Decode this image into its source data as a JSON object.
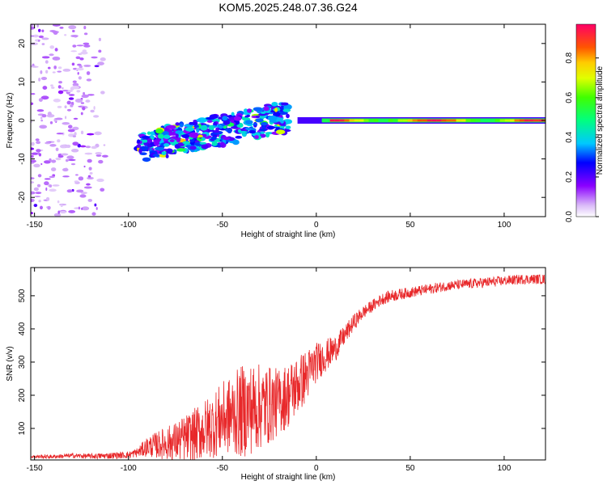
{
  "title": "KOM5.2025.248.07.36.G24",
  "chart_data": [
    {
      "type": "heatmap",
      "name": "spectrogram",
      "xlabel": "Height of straight line (km)",
      "ylabel": "Frequency (Hz)",
      "xlim": [
        -152,
        122
      ],
      "ylim": [
        -25,
        25
      ],
      "xticks": [
        "-150",
        "-100",
        "-50",
        "0",
        "50",
        "100"
      ],
      "xtick_values": [
        -150,
        -100,
        -50,
        0,
        50,
        100
      ],
      "yticks": [
        "20",
        "10",
        "0",
        "-10",
        "-20"
      ],
      "ytick_values": [
        20,
        10,
        0,
        -10,
        -20
      ],
      "colorbar": {
        "label": "Normalized spectral amplitude",
        "range": [
          0,
          0.97
        ],
        "ticks": [
          "0.0",
          "0.2",
          "0.4",
          "0.6",
          "0.8"
        ],
        "tick_values": [
          0.0,
          0.2,
          0.4,
          0.6,
          0.8
        ]
      },
      "features": {
        "carrier_line": {
          "freq_hz": 0,
          "x_start_km": -10,
          "x_end_km": 122,
          "amplitude": 0.9
        },
        "scatter_cloud": {
          "x_range_km": [
            -95,
            -15
          ],
          "freq_range_hz": [
            -12,
            6
          ],
          "amplitude": 0.3
        },
        "noise_region": {
          "x_range_km": [
            -152,
            -110
          ],
          "freq_range_hz": [
            -25,
            25
          ],
          "amplitude": 0.08
        }
      }
    },
    {
      "type": "line",
      "name": "snr",
      "xlabel": "Height of straight line (km)",
      "ylabel": "SNR (v/v)",
      "xlim": [
        -152,
        122
      ],
      "ylim": [
        5,
        585
      ],
      "xticks": [
        "-150",
        "-100",
        "-50",
        "0",
        "50",
        "100"
      ],
      "xtick_values": [
        -150,
        -100,
        -50,
        0,
        50,
        100
      ],
      "yticks": [
        "100",
        "200",
        "300",
        "400",
        "500"
      ],
      "ytick_values": [
        100,
        200,
        300,
        400,
        500
      ],
      "color": "#e8282a",
      "series": [
        {
          "name": "SNR",
          "x": [
            -152,
            -140,
            -130,
            -120,
            -110,
            -100,
            -95,
            -90,
            -85,
            -80,
            -75,
            -70,
            -65,
            -60,
            -55,
            -50,
            -45,
            -40,
            -35,
            -30,
            -25,
            -20,
            -15,
            -10,
            -5,
            0,
            5,
            10,
            15,
            20,
            25,
            30,
            35,
            40,
            50,
            60,
            70,
            80,
            90,
            100,
            110,
            122
          ],
          "values": [
            15,
            15,
            18,
            16,
            18,
            20,
            28,
            45,
            50,
            55,
            60,
            70,
            80,
            95,
            110,
            130,
            140,
            150,
            160,
            165,
            170,
            180,
            200,
            230,
            260,
            300,
            320,
            340,
            380,
            420,
            450,
            470,
            490,
            500,
            510,
            520,
            530,
            535,
            540,
            545,
            550,
            550
          ],
          "noise_amplitude": [
            5,
            6,
            7,
            8,
            10,
            10,
            15,
            30,
            40,
            50,
            60,
            70,
            80,
            90,
            100,
            110,
            120,
            140,
            140,
            130,
            120,
            100,
            100,
            90,
            80,
            60,
            50,
            40,
            30,
            25,
            20,
            18,
            18,
            18,
            16,
            16,
            15,
            15,
            16,
            15,
            15,
            15
          ]
        }
      ]
    }
  ]
}
